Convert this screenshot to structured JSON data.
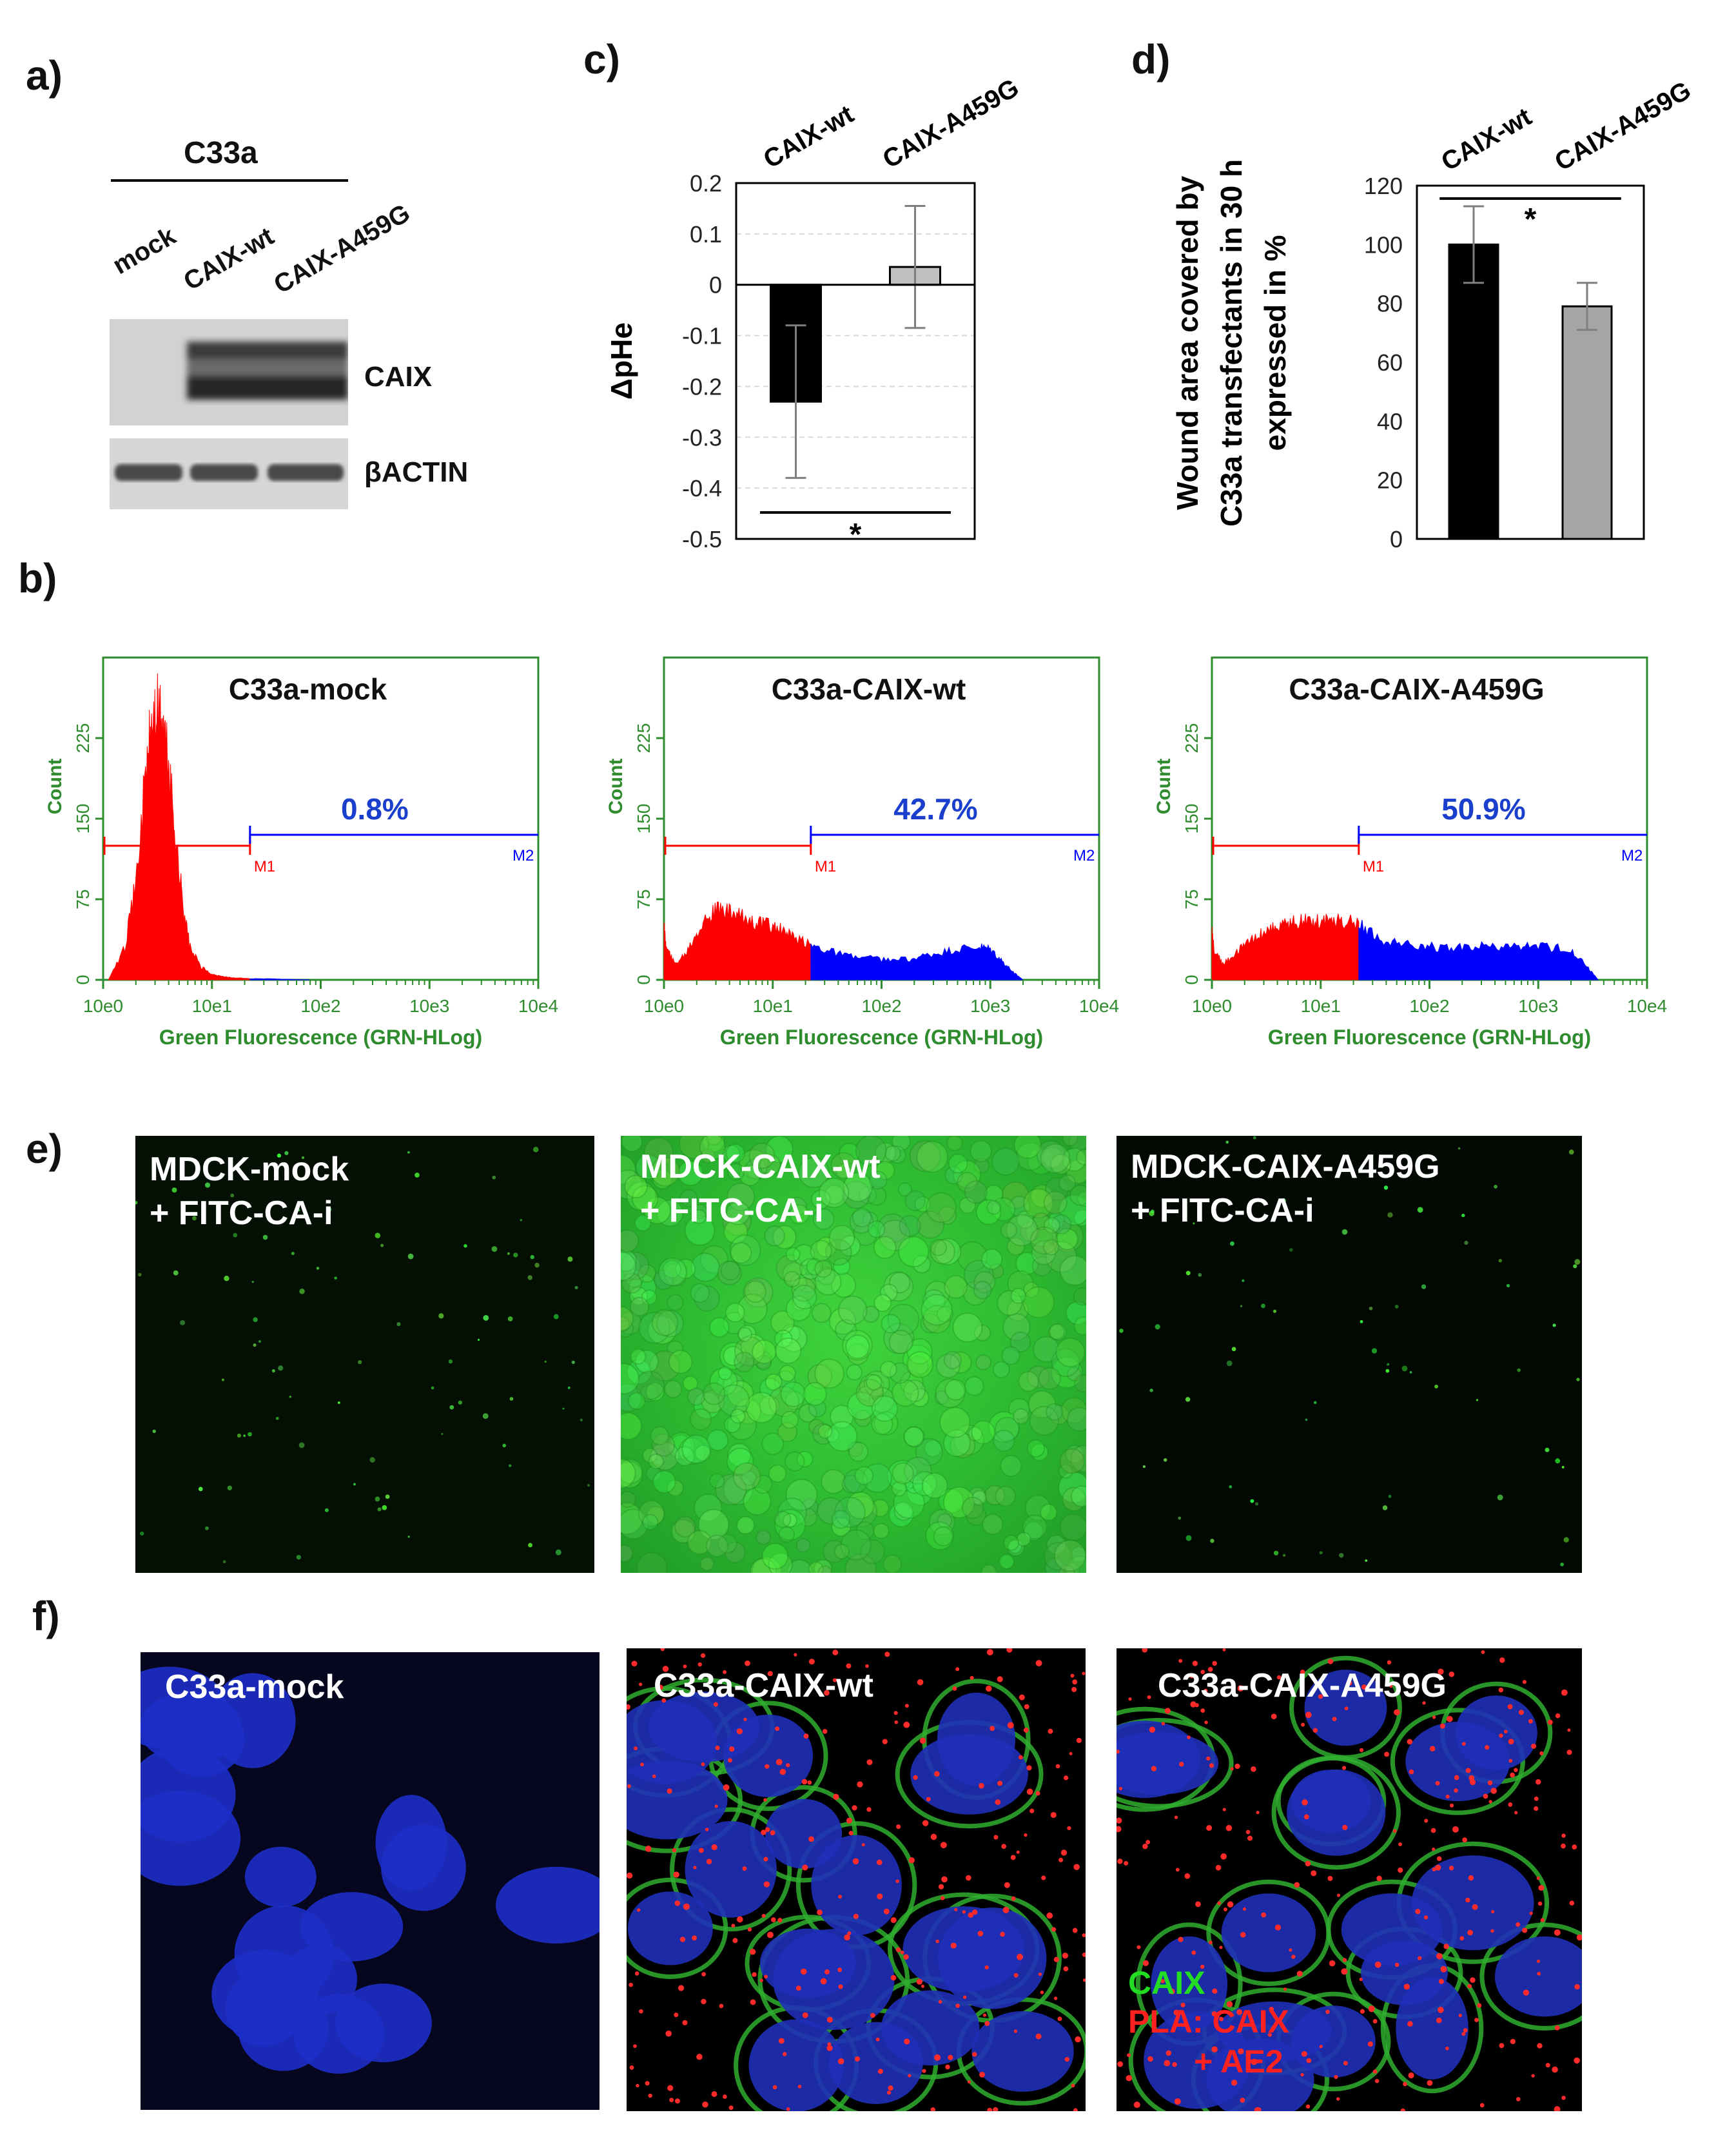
{
  "panels": {
    "a": "a)",
    "b": "b)",
    "c": "c)",
    "d": "d)",
    "e": "e)",
    "f": "f)"
  },
  "panel_a": {
    "cell_line": "C33a",
    "lanes": [
      "mock",
      "CAIX-wt",
      "CAIX-A459G"
    ],
    "bands": [
      "CAIX",
      "βACTIN"
    ]
  },
  "chart_data": [
    {
      "id": "c",
      "type": "bar",
      "categories": [
        "CAIX-wt",
        "CAIX-A459G"
      ],
      "values": [
        -0.23,
        0.035
      ],
      "errors": [
        0.15,
        0.12
      ],
      "colors": [
        "#000000",
        "#bfbfbf"
      ],
      "ylabel": "ΔpHe",
      "ylim": [
        -0.5,
        0.2
      ],
      "yticks": [
        0.2,
        0.1,
        0,
        -0.1,
        -0.2,
        -0.3,
        -0.4,
        -0.5
      ],
      "ytick_labels": [
        "0.2",
        "0.1",
        "0",
        "-0.1",
        "-0.2",
        "-0.3",
        "-0.4",
        "-0.5"
      ],
      "significance": "*"
    },
    {
      "id": "d",
      "type": "bar",
      "categories": [
        "CAIX-wt",
        "CAIX-A459G"
      ],
      "values": [
        100,
        79
      ],
      "errors": [
        13,
        8
      ],
      "colors": [
        "#000000",
        "#a6a6a6"
      ],
      "ylabel_lines": [
        "Wound area covered by",
        "C33a transfectants in 30 h",
        "expressed in %"
      ],
      "ylim": [
        0,
        120
      ],
      "yticks": [
        120,
        100,
        80,
        60,
        40,
        20,
        0
      ],
      "ytick_labels": [
        "120",
        "100",
        "80",
        "60",
        "40",
        "20",
        "0"
      ],
      "significance": "*"
    },
    {
      "id": "b1",
      "type": "area",
      "title": "C33a-mock",
      "percent": "0.8%",
      "xlabel": "Green Fluorescence (GRN-HLog)",
      "ylabel": "Count",
      "xticks": [
        "10e0",
        "10e1",
        "10e2",
        "10e3",
        "10e4"
      ],
      "yticks": [
        "0",
        "75",
        "150",
        "225"
      ],
      "xlim": [
        0,
        4
      ],
      "ylim": [
        0,
        300
      ],
      "gates": {
        "M1": [
          0,
          1.35
        ],
        "M2": [
          1.35,
          4
        ]
      },
      "gate_labels": [
        "M1",
        "M2"
      ],
      "series": [
        {
          "name": "M1",
          "color": "#ff0000",
          "x": [
            0.05,
            0.2,
            0.3,
            0.4,
            0.45,
            0.5,
            0.55,
            0.6,
            0.65,
            0.7,
            0.75,
            0.8,
            0.9,
            1.0,
            1.1,
            1.2,
            1.35
          ],
          "y": [
            0,
            30,
            90,
            200,
            240,
            250,
            240,
            200,
            150,
            100,
            60,
            30,
            12,
            5,
            3,
            2,
            1
          ]
        },
        {
          "name": "M2",
          "color": "#0000ff",
          "x": [
            1.35,
            1.5,
            1.7,
            1.9
          ],
          "y": [
            1,
            1,
            0.5,
            0
          ]
        }
      ]
    },
    {
      "id": "b2",
      "type": "area",
      "title": "C33a-CAIX-wt",
      "percent": "42.7%",
      "xlabel": "Green Fluorescence (GRN-HLog)",
      "ylabel": "Count",
      "xticks": [
        "10e0",
        "10e1",
        "10e2",
        "10e3",
        "10e4"
      ],
      "yticks": [
        "0",
        "75",
        "150",
        "225"
      ],
      "xlim": [
        0,
        4
      ],
      "ylim": [
        0,
        300
      ],
      "gates": {
        "M1": [
          0,
          1.35
        ],
        "M2": [
          1.35,
          4
        ]
      },
      "gate_labels": [
        "M1",
        "M2"
      ],
      "series": [
        {
          "name": "M1",
          "color": "#ff0000",
          "x": [
            0,
            0.02,
            0.1,
            0.2,
            0.3,
            0.4,
            0.5,
            0.6,
            0.7,
            0.8,
            0.9,
            1.0,
            1.1,
            1.2,
            1.35
          ],
          "y": [
            50,
            30,
            15,
            25,
            45,
            60,
            65,
            62,
            58,
            55,
            52,
            50,
            45,
            38,
            33
          ]
        },
        {
          "name": "M2",
          "color": "#0000ff",
          "x": [
            1.35,
            1.5,
            1.7,
            1.9,
            2.1,
            2.3,
            2.5,
            2.7,
            2.9,
            3.0,
            3.1,
            3.2,
            3.3
          ],
          "y": [
            33,
            28,
            22,
            20,
            18,
            20,
            24,
            28,
            30,
            28,
            18,
            8,
            0
          ]
        }
      ]
    },
    {
      "id": "b3",
      "type": "area",
      "title": "C33a-CAIX-A459G",
      "percent": "50.9%",
      "xlabel": "Green Fluorescence (GRN-HLog)",
      "ylabel": "Count",
      "xticks": [
        "10e0",
        "10e1",
        "10e2",
        "10e3",
        "10e4"
      ],
      "yticks": [
        "0",
        "75",
        "150",
        "225"
      ],
      "xlim": [
        0,
        4
      ],
      "ylim": [
        0,
        300
      ],
      "gates": {
        "M1": [
          0,
          1.35
        ],
        "M2": [
          1.35,
          4
        ]
      },
      "gate_labels": [
        "M1",
        "M2"
      ],
      "series": [
        {
          "name": "M1",
          "color": "#ff0000",
          "x": [
            0,
            0.02,
            0.1,
            0.2,
            0.3,
            0.4,
            0.5,
            0.6,
            0.7,
            0.8,
            0.9,
            1.0,
            1.1,
            1.2,
            1.35
          ],
          "y": [
            45,
            28,
            15,
            22,
            32,
            40,
            46,
            50,
            52,
            54,
            55,
            56,
            56,
            55,
            54
          ]
        },
        {
          "name": "M2",
          "color": "#0000ff",
          "x": [
            1.35,
            1.5,
            1.7,
            1.9,
            2.1,
            2.3,
            2.5,
            2.7,
            2.9,
            3.1,
            3.3,
            3.45,
            3.55
          ],
          "y": [
            54,
            40,
            34,
            32,
            30,
            30,
            31,
            30,
            31,
            30,
            28,
            12,
            0
          ]
        }
      ]
    }
  ],
  "panel_e": {
    "images": [
      {
        "label": "MDCK-mock\n+ FITC-CA-i"
      },
      {
        "label": "MDCK-CAIX-wt\n+ FITC-CA-i"
      },
      {
        "label": "MDCK-CAIX-A459G\n+ FITC-CA-i"
      }
    ]
  },
  "panel_f": {
    "images": [
      {
        "label": "C33a-mock"
      },
      {
        "label": "C33a-CAIX-wt"
      },
      {
        "label": "C33a-CAIX-A459G"
      }
    ],
    "legend": {
      "caix": "CAIX",
      "pla": "PLA: CAIX",
      "ae2": "+ AE2"
    }
  },
  "colors": {
    "flow_axis": "#2e8b2e",
    "flow_gate_m1": "#ff0000",
    "flow_gate_m2": "#0000ff",
    "percent_text": "#1a3fcc"
  }
}
